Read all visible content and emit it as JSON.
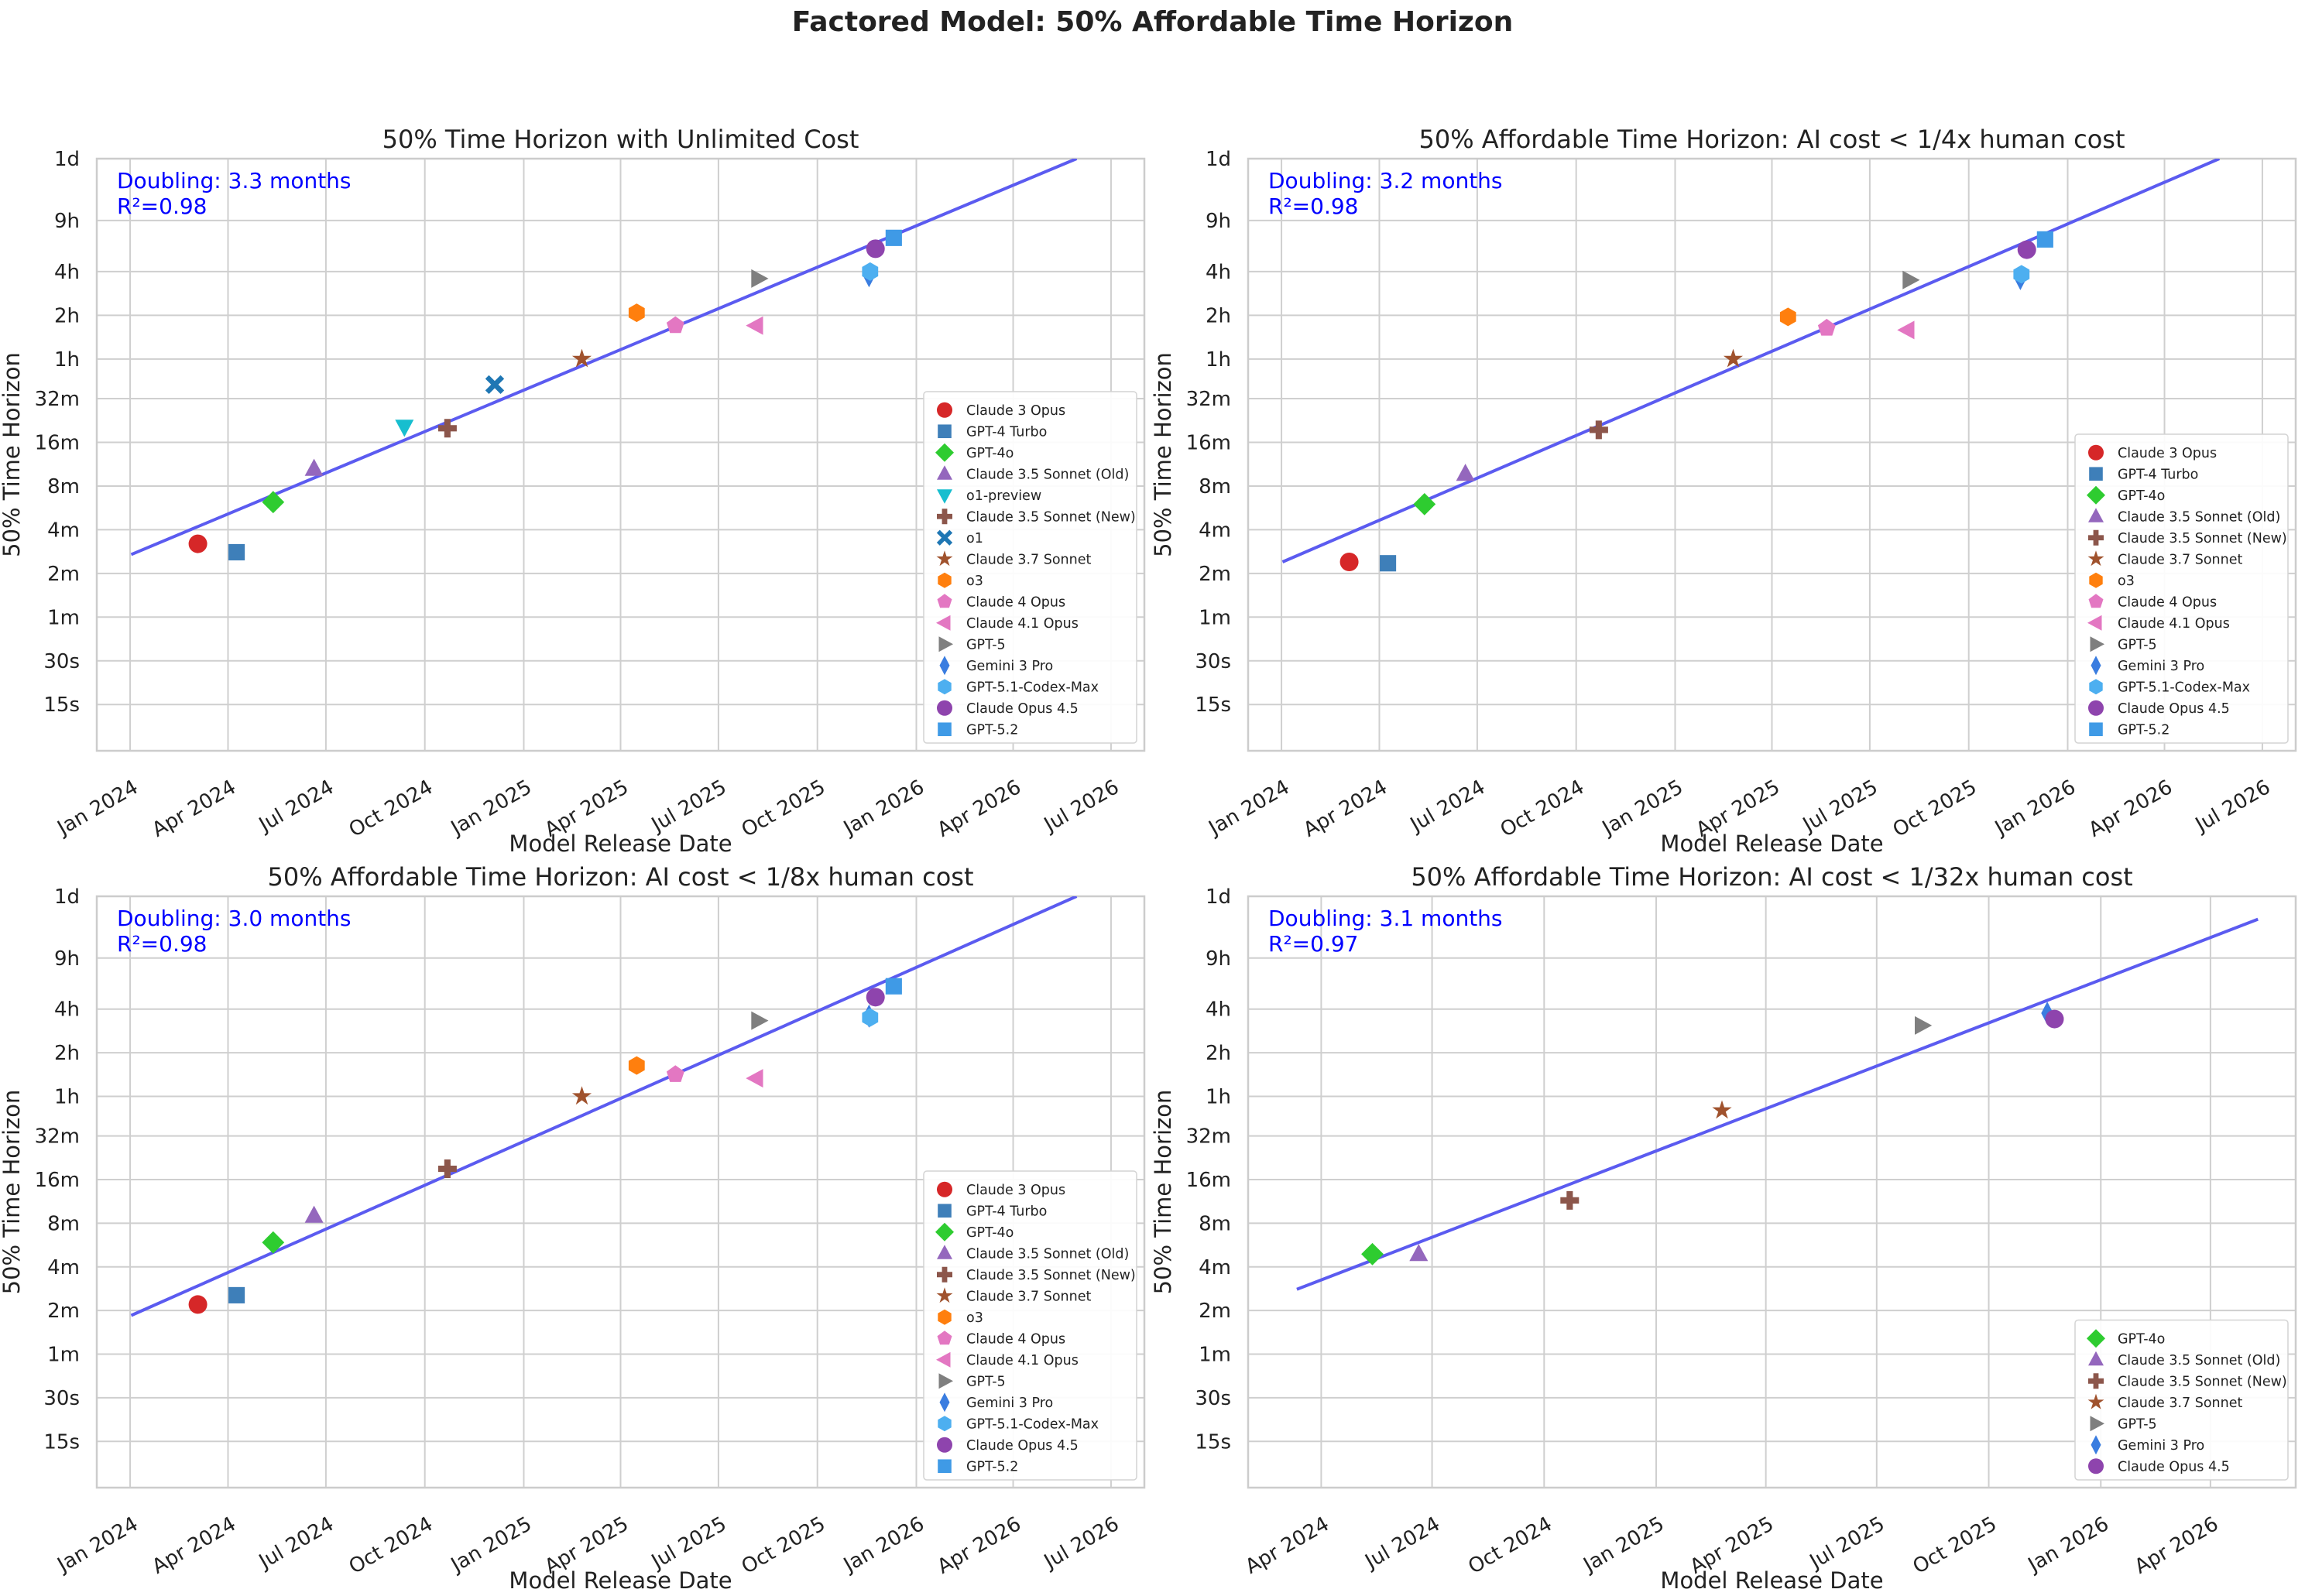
{
  "title": "Factored Model: 50% Affordable Time Horizon",
  "series_styles": {
    "Claude 3 Opus": {
      "color": "#d62728",
      "marker": "circle"
    },
    "GPT-4 Turbo": {
      "color": "#3e7fb9",
      "marker": "square"
    },
    "GPT-4o": {
      "color": "#2ecc30",
      "marker": "diamond"
    },
    "Claude 3.5 Sonnet (Old)": {
      "color": "#9467bd",
      "marker": "triangle-up"
    },
    "o1-preview": {
      "color": "#17becf",
      "marker": "triangle-down"
    },
    "Claude 3.5 Sonnet (New)": {
      "color": "#8c564b",
      "marker": "plus"
    },
    "o1": {
      "color": "#1f77b4",
      "marker": "x"
    },
    "Claude 3.7 Sonnet": {
      "color": "#a0522d",
      "marker": "star"
    },
    "o3": {
      "color": "#ff7f0e",
      "marker": "hexagon"
    },
    "Claude 4 Opus": {
      "color": "#e377c2",
      "marker": "pentagon"
    },
    "Claude 4.1 Opus": {
      "color": "#e377c2",
      "marker": "triangle-left"
    },
    "GPT-5": {
      "color": "#7f7f7f",
      "marker": "triangle-right"
    },
    "Gemini 3 Pro": {
      "color": "#3a7de0",
      "marker": "thin-diamond"
    },
    "GPT-5.1-Codex-Max": {
      "color": "#4daff0",
      "marker": "hexagon"
    },
    "Claude Opus 4.5": {
      "color": "#8e44ad",
      "marker": "circle"
    },
    "GPT-5.2": {
      "color": "#3f9ae6",
      "marker": "square"
    }
  },
  "chart_data": [
    {
      "type": "scatter",
      "title": "50% Time Horizon with Unlimited Cost",
      "xlabel": "Model Release Date",
      "ylabel": "50% Time Horizon",
      "y_scale": "log2",
      "y_unit": "minutes",
      "xlim": [
        "2023-12-01",
        "2026-08-01"
      ],
      "ylim_minutes": [
        0.12,
        1440
      ],
      "x_ticks": [
        "Jan 2024",
        "Apr 2024",
        "Jul 2024",
        "Oct 2024",
        "Jan 2025",
        "Apr 2025",
        "Jul 2025",
        "Oct 2025",
        "Jan 2026",
        "Apr 2026",
        "Jul 2026"
      ],
      "x_tick_dates": [
        "2024-01-01",
        "2024-04-01",
        "2024-07-01",
        "2024-10-01",
        "2025-01-01",
        "2025-04-01",
        "2025-07-01",
        "2025-10-01",
        "2026-01-01",
        "2026-04-01",
        "2026-07-01"
      ],
      "y_ticks": [
        "15s",
        "30s",
        "1m",
        "2m",
        "4m",
        "8m",
        "16m",
        "32m",
        "1h",
        "2h",
        "4h",
        "9h",
        "1d"
      ],
      "y_tick_minutes": [
        0.25,
        0.5,
        1,
        2,
        4,
        8,
        16,
        32,
        60,
        120,
        240,
        540,
        1440
      ],
      "grid": true,
      "legend_position": "lower-right",
      "annotation": [
        "Doubling: 3.3 months",
        "R²=0.98"
      ],
      "trend": {
        "x": [
          "2024-01-02",
          "2026-05-30"
        ],
        "y_minutes": [
          2.7,
          1440
        ]
      },
      "points": [
        {
          "name": "Claude 3 Opus",
          "x": "2024-03-04",
          "y_minutes": 3.2
        },
        {
          "name": "GPT-4 Turbo",
          "x": "2024-04-09",
          "y_minutes": 2.8
        },
        {
          "name": "GPT-4o",
          "x": "2024-05-13",
          "y_minutes": 6.2
        },
        {
          "name": "Claude 3.5 Sonnet (Old)",
          "x": "2024-06-20",
          "y_minutes": 10.5
        },
        {
          "name": "o1-preview",
          "x": "2024-09-12",
          "y_minutes": 20.5
        },
        {
          "name": "Claude 3.5 Sonnet (New)",
          "x": "2024-10-22",
          "y_minutes": 20
        },
        {
          "name": "o1",
          "x": "2024-12-05",
          "y_minutes": 40
        },
        {
          "name": "Claude 3.7 Sonnet",
          "x": "2025-02-24",
          "y_minutes": 60
        },
        {
          "name": "o3",
          "x": "2025-04-16",
          "y_minutes": 125
        },
        {
          "name": "Claude 4 Opus",
          "x": "2025-05-22",
          "y_minutes": 102
        },
        {
          "name": "Claude 4.1 Opus",
          "x": "2025-08-05",
          "y_minutes": 102
        },
        {
          "name": "GPT-5",
          "x": "2025-08-07",
          "y_minutes": 215
        },
        {
          "name": "Gemini 3 Pro",
          "x": "2025-11-18",
          "y_minutes": 225
        },
        {
          "name": "GPT-5.1-Codex-Max",
          "x": "2025-11-19",
          "y_minutes": 240
        },
        {
          "name": "Claude Opus 4.5",
          "x": "2025-11-24",
          "y_minutes": 345
        },
        {
          "name": "GPT-5.2",
          "x": "2025-12-11",
          "y_minutes": 410
        }
      ]
    },
    {
      "type": "scatter",
      "title": "50% Affordable Time Horizon: AI cost < 1/4x human cost",
      "xlabel": "Model Release Date",
      "ylabel": "50% Time Horizon",
      "y_scale": "log2",
      "y_unit": "minutes",
      "xlim": [
        "2023-12-01",
        "2026-08-01"
      ],
      "ylim_minutes": [
        0.12,
        1440
      ],
      "x_ticks": [
        "Jan 2024",
        "Apr 2024",
        "Jul 2024",
        "Oct 2024",
        "Jan 2025",
        "Apr 2025",
        "Jul 2025",
        "Oct 2025",
        "Jan 2026",
        "Apr 2026",
        "Jul 2026"
      ],
      "x_tick_dates": [
        "2024-01-01",
        "2024-04-01",
        "2024-07-01",
        "2024-10-01",
        "2025-01-01",
        "2025-04-01",
        "2025-07-01",
        "2025-10-01",
        "2026-01-01",
        "2026-04-01",
        "2026-07-01"
      ],
      "y_ticks": [
        "15s",
        "30s",
        "1m",
        "2m",
        "4m",
        "8m",
        "16m",
        "32m",
        "1h",
        "2h",
        "4h",
        "9h",
        "1d"
      ],
      "y_tick_minutes": [
        0.25,
        0.5,
        1,
        2,
        4,
        8,
        16,
        32,
        60,
        120,
        240,
        540,
        1440
      ],
      "grid": true,
      "legend_position": "lower-right",
      "annotation": [
        "Doubling: 3.2 months",
        "R²=0.98"
      ],
      "trend": {
        "x": [
          "2024-01-02",
          "2026-05-22"
        ],
        "y_minutes": [
          2.4,
          1440
        ]
      },
      "points": [
        {
          "name": "Claude 3 Opus",
          "x": "2024-03-04",
          "y_minutes": 2.4
        },
        {
          "name": "GPT-4 Turbo",
          "x": "2024-04-09",
          "y_minutes": 2.35
        },
        {
          "name": "GPT-4o",
          "x": "2024-05-13",
          "y_minutes": 6
        },
        {
          "name": "Claude 3.5 Sonnet (Old)",
          "x": "2024-06-20",
          "y_minutes": 9.7
        },
        {
          "name": "Claude 3.5 Sonnet (New)",
          "x": "2024-10-22",
          "y_minutes": 19.5
        },
        {
          "name": "Claude 3.7 Sonnet",
          "x": "2025-02-24",
          "y_minutes": 60
        },
        {
          "name": "o3",
          "x": "2025-04-16",
          "y_minutes": 117
        },
        {
          "name": "Claude 4 Opus",
          "x": "2025-05-22",
          "y_minutes": 98
        },
        {
          "name": "Claude 4.1 Opus",
          "x": "2025-08-05",
          "y_minutes": 95
        },
        {
          "name": "GPT-5",
          "x": "2025-08-07",
          "y_minutes": 210
        },
        {
          "name": "Gemini 3 Pro",
          "x": "2025-11-18",
          "y_minutes": 215
        },
        {
          "name": "GPT-5.1-Codex-Max",
          "x": "2025-11-19",
          "y_minutes": 230
        },
        {
          "name": "Claude Opus 4.5",
          "x": "2025-11-24",
          "y_minutes": 340
        },
        {
          "name": "GPT-5.2",
          "x": "2025-12-11",
          "y_minutes": 400
        }
      ]
    },
    {
      "type": "scatter",
      "title": "50% Affordable Time Horizon: AI cost < 1/8x human cost",
      "xlabel": "Model Release Date",
      "ylabel": "50% Time Horizon",
      "y_scale": "log2",
      "y_unit": "minutes",
      "xlim": [
        "2023-12-01",
        "2026-08-01"
      ],
      "ylim_minutes": [
        0.12,
        1440
      ],
      "x_ticks": [
        "Jan 2024",
        "Apr 2024",
        "Jul 2024",
        "Oct 2024",
        "Jan 2025",
        "Apr 2025",
        "Jul 2025",
        "Oct 2025",
        "Jan 2026",
        "Apr 2026",
        "Jul 2026"
      ],
      "x_tick_dates": [
        "2024-01-01",
        "2024-04-01",
        "2024-07-01",
        "2024-10-01",
        "2025-01-01",
        "2025-04-01",
        "2025-07-01",
        "2025-10-01",
        "2026-01-01",
        "2026-04-01",
        "2026-07-01"
      ],
      "y_ticks": [
        "15s",
        "30s",
        "1m",
        "2m",
        "4m",
        "8m",
        "16m",
        "32m",
        "1h",
        "2h",
        "4h",
        "9h",
        "1d"
      ],
      "y_tick_minutes": [
        0.25,
        0.5,
        1,
        2,
        4,
        8,
        16,
        32,
        60,
        120,
        240,
        540,
        1440
      ],
      "grid": true,
      "legend_position": "lower-right",
      "annotation": [
        "Doubling: 3.0 months",
        "R²=0.98"
      ],
      "trend": {
        "x": [
          "2024-01-02",
          "2026-05-30"
        ],
        "y_minutes": [
          1.85,
          1440
        ]
      },
      "points": [
        {
          "name": "Claude 3 Opus",
          "x": "2024-03-04",
          "y_minutes": 2.2
        },
        {
          "name": "GPT-4 Turbo",
          "x": "2024-04-09",
          "y_minutes": 2.55
        },
        {
          "name": "GPT-4o",
          "x": "2024-05-13",
          "y_minutes": 5.9
        },
        {
          "name": "Claude 3.5 Sonnet (Old)",
          "x": "2024-06-20",
          "y_minutes": 9
        },
        {
          "name": "Claude 3.5 Sonnet (New)",
          "x": "2024-10-22",
          "y_minutes": 19
        },
        {
          "name": "Claude 3.7 Sonnet",
          "x": "2025-02-24",
          "y_minutes": 60
        },
        {
          "name": "o3",
          "x": "2025-04-16",
          "y_minutes": 98
        },
        {
          "name": "Claude 4 Opus",
          "x": "2025-05-22",
          "y_minutes": 85
        },
        {
          "name": "Claude 4.1 Opus",
          "x": "2025-08-05",
          "y_minutes": 80
        },
        {
          "name": "GPT-5",
          "x": "2025-08-07",
          "y_minutes": 200
        },
        {
          "name": "Gemini 3 Pro",
          "x": "2025-11-18",
          "y_minutes": 215
        },
        {
          "name": "GPT-5.1-Codex-Max",
          "x": "2025-11-19",
          "y_minutes": 210
        },
        {
          "name": "Claude Opus 4.5",
          "x": "2025-11-24",
          "y_minutes": 290
        },
        {
          "name": "GPT-5.2",
          "x": "2025-12-11",
          "y_minutes": 345
        }
      ]
    },
    {
      "type": "scatter",
      "title": "50% Affordable Time Horizon: AI cost < 1/32x human cost",
      "xlabel": "Model Release Date",
      "ylabel": "50% Time Horizon",
      "y_scale": "log2",
      "y_unit": "minutes",
      "xlim": [
        "2024-02-01",
        "2026-06-10"
      ],
      "ylim_minutes": [
        0.12,
        1440
      ],
      "x_ticks": [
        "Apr 2024",
        "Jul 2024",
        "Oct 2024",
        "Jan 2025",
        "Apr 2025",
        "Jul 2025",
        "Oct 2025",
        "Jan 2026",
        "Apr 2026"
      ],
      "x_tick_dates": [
        "2024-04-01",
        "2024-07-01",
        "2024-10-01",
        "2025-01-01",
        "2025-04-01",
        "2025-07-01",
        "2025-10-01",
        "2026-01-01",
        "2026-04-01"
      ],
      "y_ticks": [
        "15s",
        "30s",
        "1m",
        "2m",
        "4m",
        "8m",
        "16m",
        "32m",
        "1h",
        "2h",
        "4h",
        "9h",
        "1d"
      ],
      "y_tick_minutes": [
        0.25,
        0.5,
        1,
        2,
        4,
        8,
        16,
        32,
        60,
        120,
        240,
        540,
        1440
      ],
      "grid": true,
      "legend_position": "lower-right",
      "annotation": [
        "Doubling: 3.1 months",
        "R²=0.97"
      ],
      "trend": {
        "x": [
          "2024-03-12",
          "2026-05-10"
        ],
        "y_minutes": [
          2.8,
          1000
        ]
      },
      "points": [
        {
          "name": "GPT-4o",
          "x": "2024-05-13",
          "y_minutes": 4.9
        },
        {
          "name": "Claude 3.5 Sonnet (Old)",
          "x": "2024-06-20",
          "y_minutes": 4.9
        },
        {
          "name": "Claude 3.5 Sonnet (New)",
          "x": "2024-10-22",
          "y_minutes": 11.5
        },
        {
          "name": "Claude 3.7 Sonnet",
          "x": "2025-02-24",
          "y_minutes": 48
        },
        {
          "name": "GPT-5",
          "x": "2025-08-07",
          "y_minutes": 185
        },
        {
          "name": "Gemini 3 Pro",
          "x": "2025-11-18",
          "y_minutes": 225
        },
        {
          "name": "Claude Opus 4.5",
          "x": "2025-11-24",
          "y_minutes": 205
        }
      ]
    }
  ]
}
